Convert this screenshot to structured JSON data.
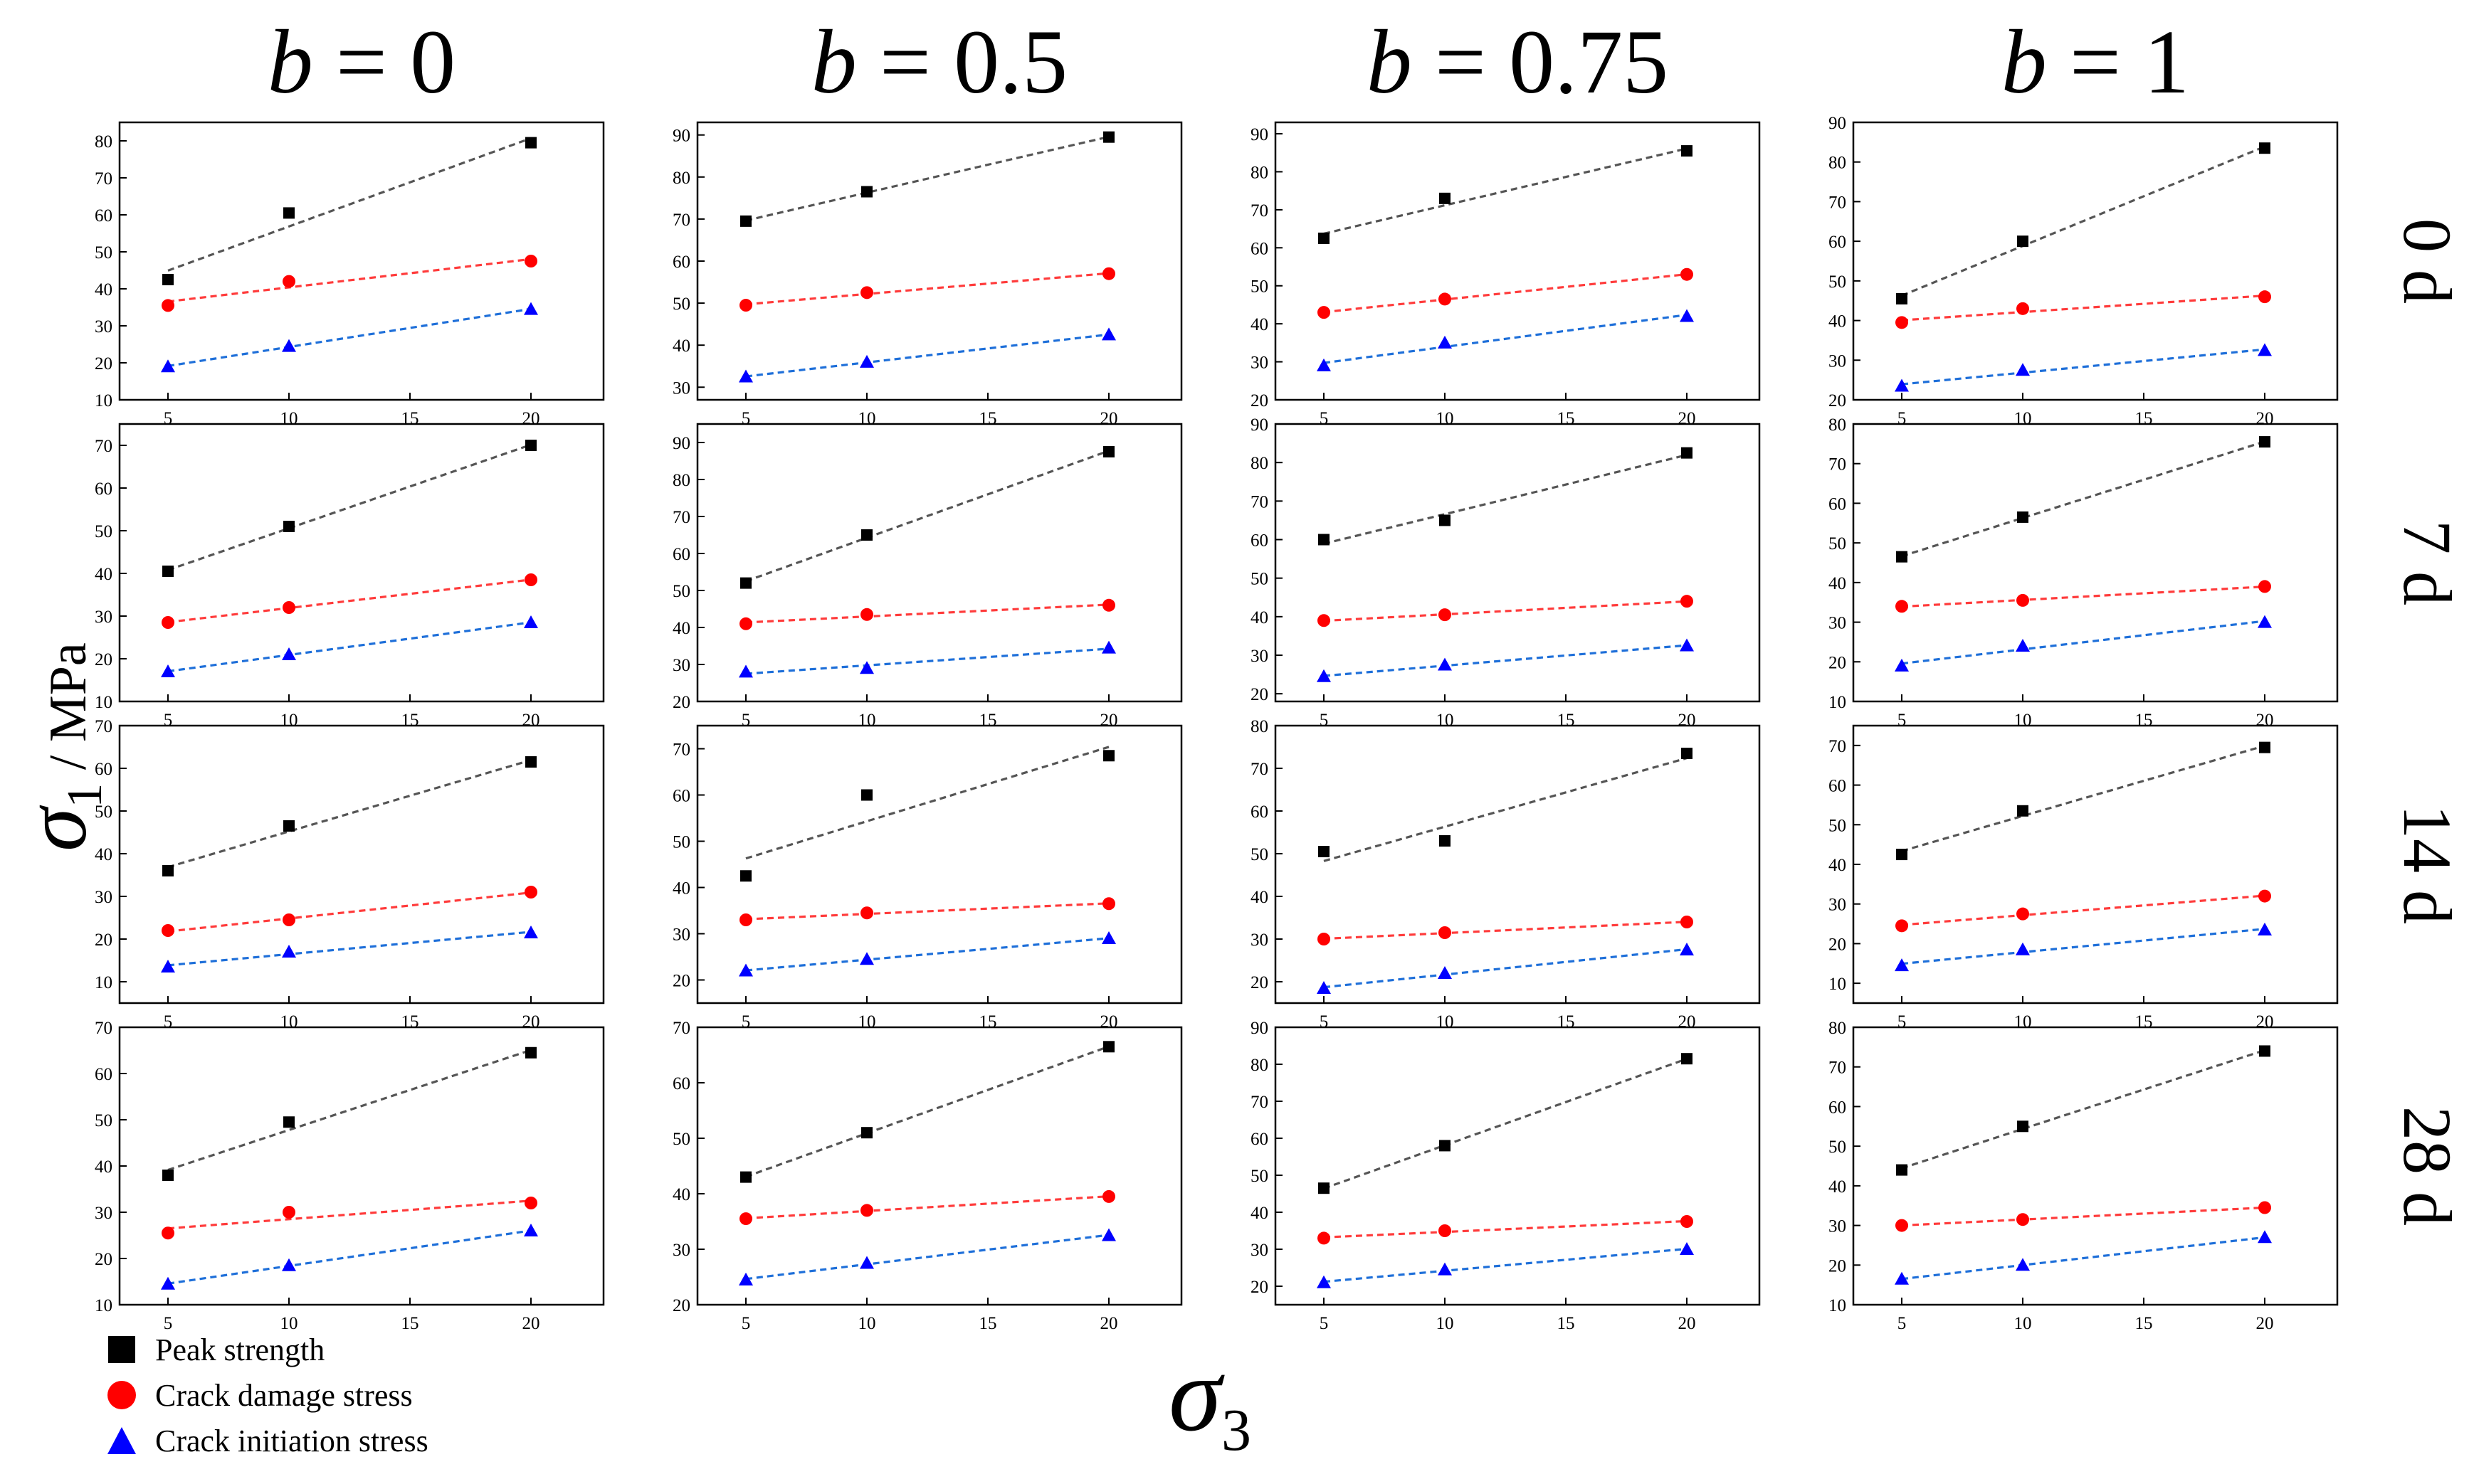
{
  "figure": {
    "ylabel_symbol": "σ",
    "ylabel_sub": "1",
    "ylabel_unit": " / MPa",
    "xlabel_symbol": "σ",
    "xlabel_sub": "3",
    "column_prefix": "b = ",
    "columns": [
      "0",
      "0.5",
      "0.75",
      "1"
    ],
    "rows": [
      "0 d",
      "7 d",
      "14 d",
      "28 d"
    ]
  },
  "legend": {
    "items": [
      {
        "label": "Peak strength",
        "color": "#000000",
        "marker": "square"
      },
      {
        "label": "Crack damage stress",
        "color": "#ff0000",
        "marker": "circle"
      },
      {
        "label": "Crack initiation stress",
        "color": "#0000ff",
        "marker": "triangle"
      }
    ]
  },
  "colors": {
    "peak_fit": "#555555",
    "damage_fit": "#ff3b3b",
    "initiation_fit": "#1e6fd9"
  },
  "chart_data": [
    {
      "type": "scatter",
      "row": "0 d",
      "col": "b = 0",
      "x": [
        5,
        10,
        20
      ],
      "xlim": [
        3,
        23
      ],
      "xticks": [
        5,
        10,
        15,
        20
      ],
      "ylim": [
        10,
        85
      ],
      "yticks": [
        10,
        20,
        30,
        40,
        50,
        60,
        70,
        80
      ],
      "series": [
        {
          "name": "Peak strength",
          "values": [
            42.5,
            60.5,
            79.5
          ]
        },
        {
          "name": "Crack damage stress",
          "values": [
            35.5,
            42,
            47.5
          ]
        },
        {
          "name": "Crack initiation stress",
          "values": [
            19,
            24.5,
            34.5
          ]
        }
      ]
    },
    {
      "type": "scatter",
      "row": "0 d",
      "col": "b = 0.5",
      "x": [
        5,
        10,
        20
      ],
      "xlim": [
        3,
        23
      ],
      "xticks": [
        5,
        10,
        15,
        20
      ],
      "ylim": [
        27,
        93
      ],
      "yticks": [
        30,
        40,
        50,
        60,
        70,
        80,
        90
      ],
      "series": [
        {
          "name": "Peak strength",
          "values": [
            69.5,
            76.5,
            89.5
          ]
        },
        {
          "name": "Crack damage stress",
          "values": [
            49.5,
            52.5,
            57
          ]
        },
        {
          "name": "Crack initiation stress",
          "values": [
            32.5,
            36,
            42.5
          ]
        }
      ]
    },
    {
      "type": "scatter",
      "row": "0 d",
      "col": "b = 0.75",
      "x": [
        5,
        10,
        20
      ],
      "xlim": [
        3,
        23
      ],
      "xticks": [
        5,
        10,
        15,
        20
      ],
      "ylim": [
        20,
        93
      ],
      "yticks": [
        20,
        30,
        40,
        50,
        60,
        70,
        80,
        90
      ],
      "series": [
        {
          "name": "Peak strength",
          "values": [
            62.5,
            73,
            85.5
          ]
        },
        {
          "name": "Crack damage stress",
          "values": [
            43,
            46.5,
            53
          ]
        },
        {
          "name": "Crack initiation stress",
          "values": [
            29,
            35,
            42
          ]
        }
      ]
    },
    {
      "type": "scatter",
      "row": "0 d",
      "col": "b = 1",
      "x": [
        5,
        10,
        20
      ],
      "xlim": [
        3,
        23
      ],
      "xticks": [
        5,
        10,
        15,
        20
      ],
      "ylim": [
        20,
        90
      ],
      "yticks": [
        20,
        30,
        40,
        50,
        60,
        70,
        80,
        90
      ],
      "series": [
        {
          "name": "Peak strength",
          "values": [
            45.5,
            60,
            83.5
          ]
        },
        {
          "name": "Crack damage stress",
          "values": [
            39.5,
            43,
            46
          ]
        },
        {
          "name": "Crack initiation stress",
          "values": [
            23.5,
            27.5,
            32.5
          ]
        }
      ]
    },
    {
      "type": "scatter",
      "row": "7 d",
      "col": "b = 0",
      "x": [
        5,
        10,
        20
      ],
      "xlim": [
        3,
        23
      ],
      "xticks": [
        5,
        10,
        15,
        20
      ],
      "ylim": [
        10,
        75
      ],
      "yticks": [
        10,
        20,
        30,
        40,
        50,
        60,
        70
      ],
      "series": [
        {
          "name": "Peak strength",
          "values": [
            40.5,
            51,
            70
          ]
        },
        {
          "name": "Crack damage stress",
          "values": [
            28.5,
            32,
            38.5
          ]
        },
        {
          "name": "Crack initiation stress",
          "values": [
            17,
            21,
            28.5
          ]
        }
      ]
    },
    {
      "type": "scatter",
      "row": "7 d",
      "col": "b = 0.5",
      "x": [
        5,
        10,
        20
      ],
      "xlim": [
        3,
        23
      ],
      "xticks": [
        5,
        10,
        15,
        20
      ],
      "ylim": [
        20,
        95
      ],
      "yticks": [
        20,
        30,
        40,
        50,
        60,
        70,
        80,
        90
      ],
      "series": [
        {
          "name": "Peak strength",
          "values": [
            52,
            65,
            87.5
          ]
        },
        {
          "name": "Crack damage stress",
          "values": [
            41,
            43.5,
            46
          ]
        },
        {
          "name": "Crack initiation stress",
          "values": [
            28,
            29,
            34.5
          ]
        }
      ]
    },
    {
      "type": "scatter",
      "row": "7 d",
      "col": "b = 0.75",
      "x": [
        5,
        10,
        20
      ],
      "xlim": [
        3,
        23
      ],
      "xticks": [
        5,
        10,
        15,
        20
      ],
      "ylim": [
        18,
        90
      ],
      "yticks": [
        20,
        30,
        40,
        50,
        60,
        70,
        80,
        90
      ],
      "series": [
        {
          "name": "Peak strength",
          "values": [
            60,
            65,
            82.5
          ]
        },
        {
          "name": "Crack damage stress",
          "values": [
            39,
            40.5,
            44
          ]
        },
        {
          "name": "Crack initiation stress",
          "values": [
            24.5,
            27.5,
            32.5
          ]
        }
      ]
    },
    {
      "type": "scatter",
      "row": "7 d",
      "col": "b = 1",
      "x": [
        5,
        10,
        20
      ],
      "xlim": [
        3,
        23
      ],
      "xticks": [
        5,
        10,
        15,
        20
      ],
      "ylim": [
        10,
        80
      ],
      "yticks": [
        10,
        20,
        30,
        40,
        50,
        60,
        70,
        80
      ],
      "series": [
        {
          "name": "Peak strength",
          "values": [
            46.5,
            56.5,
            75.5
          ]
        },
        {
          "name": "Crack damage stress",
          "values": [
            34,
            35.5,
            39
          ]
        },
        {
          "name": "Crack initiation stress",
          "values": [
            19,
            24,
            30
          ]
        }
      ]
    },
    {
      "type": "scatter",
      "row": "14 d",
      "col": "b = 0",
      "x": [
        5,
        10,
        20
      ],
      "xlim": [
        3,
        23
      ],
      "xticks": [
        5,
        10,
        15,
        20
      ],
      "ylim": [
        5,
        70
      ],
      "yticks": [
        10,
        20,
        30,
        40,
        50,
        60,
        70
      ],
      "series": [
        {
          "name": "Peak strength",
          "values": [
            36,
            46.5,
            61.5
          ]
        },
        {
          "name": "Crack damage stress",
          "values": [
            22,
            24.5,
            31
          ]
        },
        {
          "name": "Crack initiation stress",
          "values": [
            13.5,
            17,
            21.5
          ]
        }
      ]
    },
    {
      "type": "scatter",
      "row": "14 d",
      "col": "b = 0.5",
      "x": [
        5,
        10,
        20
      ],
      "xlim": [
        3,
        23
      ],
      "xticks": [
        5,
        10,
        15,
        20
      ],
      "ylim": [
        15,
        75
      ],
      "yticks": [
        20,
        30,
        40,
        50,
        60,
        70
      ],
      "series": [
        {
          "name": "Peak strength",
          "values": [
            42.5,
            60,
            68.5
          ]
        },
        {
          "name": "Crack damage stress",
          "values": [
            33,
            34.5,
            36.5
          ]
        },
        {
          "name": "Crack initiation stress",
          "values": [
            22,
            24.5,
            29
          ]
        }
      ]
    },
    {
      "type": "scatter",
      "row": "14 d",
      "col": "b = 0.75",
      "x": [
        5,
        10,
        20
      ],
      "xlim": [
        3,
        23
      ],
      "xticks": [
        5,
        10,
        15,
        20
      ],
      "ylim": [
        15,
        80
      ],
      "yticks": [
        20,
        30,
        40,
        50,
        60,
        70,
        80
      ],
      "series": [
        {
          "name": "Peak strength",
          "values": [
            50.5,
            53,
            73.5
          ]
        },
        {
          "name": "Crack damage stress",
          "values": [
            30,
            31.5,
            34
          ]
        },
        {
          "name": "Crack initiation stress",
          "values": [
            18.5,
            22,
            27.5
          ]
        }
      ]
    },
    {
      "type": "scatter",
      "row": "14 d",
      "col": "b = 1",
      "x": [
        5,
        10,
        20
      ],
      "xlim": [
        3,
        23
      ],
      "xticks": [
        5,
        10,
        15,
        20
      ],
      "ylim": [
        5,
        75
      ],
      "yticks": [
        10,
        20,
        30,
        40,
        50,
        60,
        70
      ],
      "series": [
        {
          "name": "Peak strength",
          "values": [
            42.5,
            53.5,
            69.5
          ]
        },
        {
          "name": "Crack damage stress",
          "values": [
            24.5,
            27.5,
            32
          ]
        },
        {
          "name": "Crack initiation stress",
          "values": [
            14.5,
            18.5,
            23.5
          ]
        }
      ]
    },
    {
      "type": "scatter",
      "row": "28 d",
      "col": "b = 0",
      "x": [
        5,
        10,
        20
      ],
      "xlim": [
        3,
        23
      ],
      "xticks": [
        5,
        10,
        15,
        20
      ],
      "ylim": [
        10,
        70
      ],
      "yticks": [
        10,
        20,
        30,
        40,
        50,
        60,
        70
      ],
      "series": [
        {
          "name": "Peak strength",
          "values": [
            38,
            49.5,
            64.5
          ]
        },
        {
          "name": "Crack damage stress",
          "values": [
            25.5,
            30,
            32
          ]
        },
        {
          "name": "Crack initiation stress",
          "values": [
            14.5,
            18.5,
            26
          ]
        }
      ]
    },
    {
      "type": "scatter",
      "row": "28 d",
      "col": "b = 0.5",
      "x": [
        5,
        10,
        20
      ],
      "xlim": [
        3,
        23
      ],
      "xticks": [
        5,
        10,
        15,
        20
      ],
      "ylim": [
        20,
        70
      ],
      "yticks": [
        20,
        30,
        40,
        50,
        60,
        70
      ],
      "series": [
        {
          "name": "Peak strength",
          "values": [
            43,
            51,
            66.5
          ]
        },
        {
          "name": "Crack damage stress",
          "values": [
            35.5,
            37,
            39.5
          ]
        },
        {
          "name": "Crack initiation stress",
          "values": [
            24.5,
            27.5,
            32.5
          ]
        }
      ]
    },
    {
      "type": "scatter",
      "row": "28 d",
      "col": "b = 0.75",
      "x": [
        5,
        10,
        20
      ],
      "xlim": [
        3,
        23
      ],
      "xticks": [
        5,
        10,
        15,
        20
      ],
      "ylim": [
        15,
        90
      ],
      "yticks": [
        20,
        30,
        40,
        50,
        60,
        70,
        80,
        90
      ],
      "series": [
        {
          "name": "Peak strength",
          "values": [
            46.5,
            58,
            81.5
          ]
        },
        {
          "name": "Crack damage stress",
          "values": [
            33,
            35,
            37.5
          ]
        },
        {
          "name": "Crack initiation stress",
          "values": [
            21,
            24.5,
            30
          ]
        }
      ]
    },
    {
      "type": "scatter",
      "row": "28 d",
      "col": "b = 1",
      "x": [
        5,
        10,
        20
      ],
      "xlim": [
        3,
        23
      ],
      "xticks": [
        5,
        10,
        15,
        20
      ],
      "ylim": [
        10,
        80
      ],
      "yticks": [
        10,
        20,
        30,
        40,
        50,
        60,
        70,
        80
      ],
      "series": [
        {
          "name": "Peak strength",
          "values": [
            44,
            55,
            74
          ]
        },
        {
          "name": "Crack damage stress",
          "values": [
            30,
            31.5,
            34.5
          ]
        },
        {
          "name": "Crack initiation stress",
          "values": [
            16.5,
            20,
            27
          ]
        }
      ]
    }
  ]
}
